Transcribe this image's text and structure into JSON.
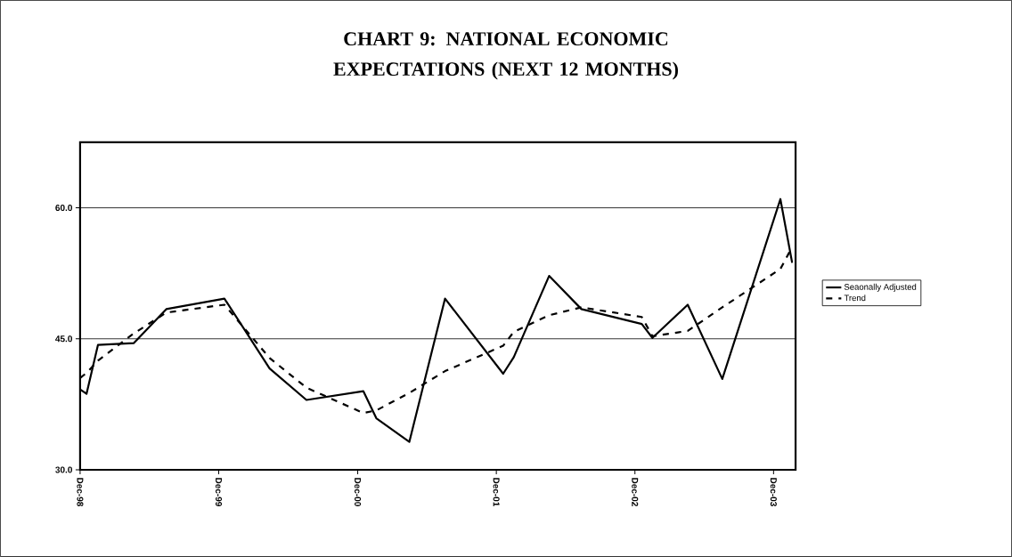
{
  "chart_data": {
    "type": "line",
    "title": "CHART 9:  NATIONAL ECONOMIC EXPECTATIONS (NEXT 12 MONTHS)",
    "x": [
      "1998-12-01",
      "1998-12-18",
      "1999-01-17",
      "1999-04-21",
      "1999-07-16",
      "1999-12-16",
      "2000-04-13",
      "2000-07-19",
      "2000-12-16",
      "2001-01-19",
      "2001-04-16",
      "2001-07-19",
      "2001-12-19",
      "2002-01-16",
      "2002-04-19",
      "2002-07-13",
      "2002-12-19",
      "2003-01-16",
      "2003-04-19",
      "2003-07-19",
      "2003-12-19",
      "2004-01-19"
    ],
    "series": [
      {
        "name": "Seaonally Adjusted",
        "color": "#000000",
        "line_style": "solid",
        "values": [
          39.2,
          38.7,
          44.3,
          44.5,
          48.4,
          49.6,
          41.6,
          38.0,
          39.0,
          35.9,
          33.2,
          49.6,
          41.0,
          42.9,
          52.2,
          48.4,
          46.7,
          45.1,
          48.9,
          40.4,
          61.0,
          53.7
        ]
      },
      {
        "name": "Trend",
        "color": "#000000",
        "line_style": "dashed",
        "values": [
          40.5,
          41.1,
          42.5,
          45.6,
          48.0,
          48.9,
          42.8,
          39.4,
          36.5,
          36.8,
          38.8,
          41.3,
          44.2,
          45.8,
          47.7,
          48.6,
          47.5,
          45.3,
          45.9,
          48.6,
          53.0,
          55.5
        ]
      }
    ],
    "xlim": [
      "1998-12-01",
      "2004-01-28"
    ],
    "xticks": [
      {
        "value": "1998-12-01",
        "label": "Dec-98"
      },
      {
        "value": "1999-12-01",
        "label": "Dec-99"
      },
      {
        "value": "2000-12-01",
        "label": "Dec-00"
      },
      {
        "value": "2001-12-01",
        "label": "Dec-01"
      },
      {
        "value": "2002-12-01",
        "label": "Dec-02"
      },
      {
        "value": "2003-12-01",
        "label": "Dec-03"
      }
    ],
    "ylim": [
      30,
      67.5
    ],
    "yticks": [
      {
        "value": 30,
        "label": "30.0"
      },
      {
        "value": 45,
        "label": "45.0"
      },
      {
        "value": 60,
        "label": "60.0"
      }
    ],
    "grid": "y",
    "legend": "right"
  }
}
